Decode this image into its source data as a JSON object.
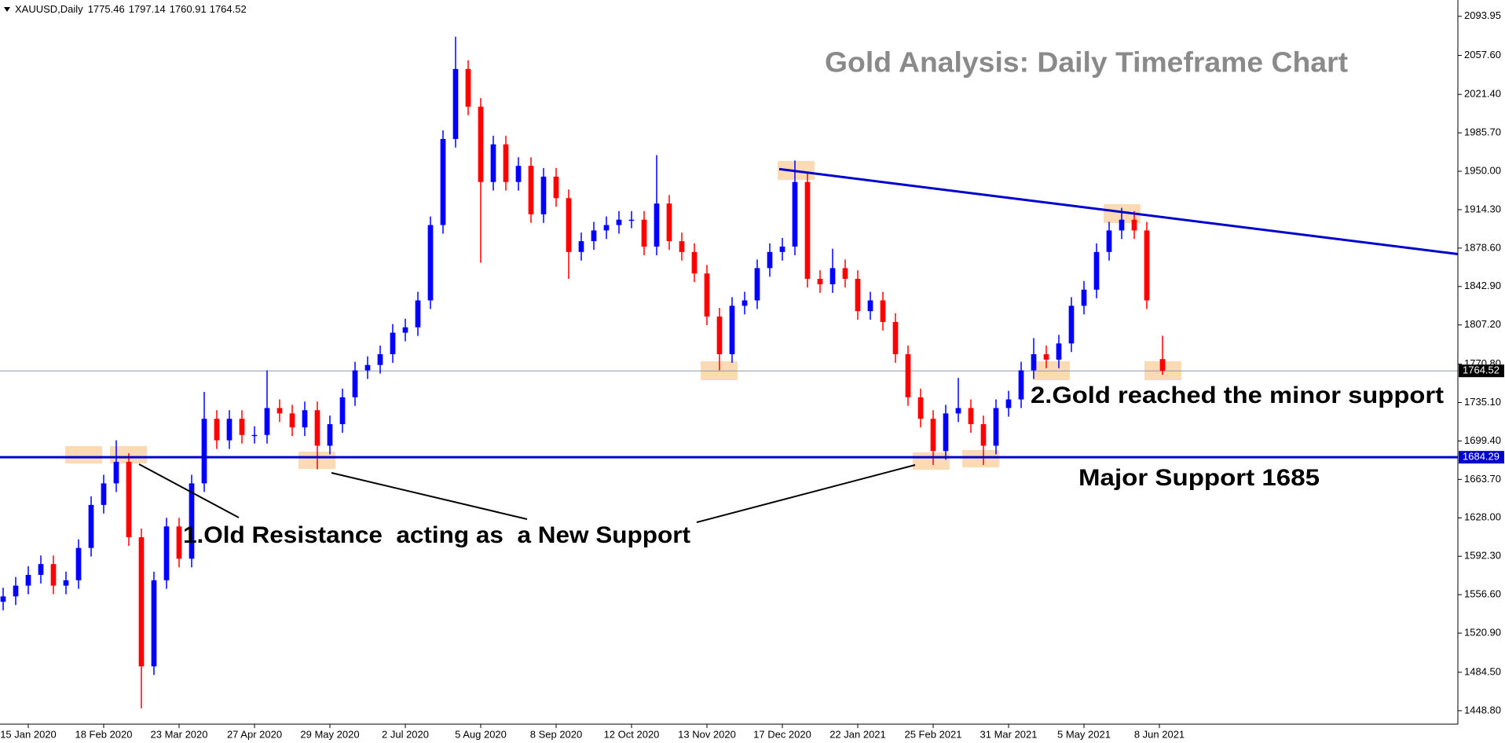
{
  "chart_data": {
    "type": "candlestick",
    "symbol": "XAUUSD,Daily",
    "title": "Gold Analysis: Daily Timeframe Chart",
    "up_color": "#0000ff",
    "down_color": "#ff0000",
    "x": [
      0,
      4,
      8,
      12,
      16,
      20,
      24,
      28,
      32,
      36,
      40,
      44,
      48,
      52,
      56,
      60,
      64,
      68,
      72,
      76,
      80,
      84,
      88,
      92,
      96,
      100,
      104,
      108,
      112,
      116,
      120,
      124,
      128,
      132,
      136,
      140,
      144,
      148,
      152,
      156,
      160,
      164,
      168,
      172,
      176,
      180,
      184,
      188,
      192,
      196,
      200,
      204,
      208,
      212,
      216,
      220,
      224,
      228,
      232,
      236,
      240,
      244,
      248,
      252,
      256,
      260,
      264,
      268,
      272,
      276,
      280,
      284,
      288,
      292,
      296,
      300,
      304,
      308,
      312,
      316,
      320,
      324,
      328,
      332,
      336,
      340,
      344,
      348,
      352,
      356,
      360,
      364,
      369
    ],
    "open": [
      1550,
      1555,
      1565,
      1575,
      1585,
      1565,
      1570,
      1600,
      1640,
      1660,
      1680,
      1610,
      1490,
      1570,
      1620,
      1590,
      1660,
      1720,
      1700,
      1720,
      1705,
      1705,
      1730,
      1725,
      1712,
      1728,
      1695,
      1715,
      1740,
      1765,
      1770,
      1780,
      1800,
      1805,
      1830,
      1900,
      1980,
      2045,
      2010,
      1940,
      1975,
      1940,
      1955,
      1910,
      1945,
      1925,
      1875,
      1885,
      1895,
      1900,
      1905,
      1905,
      1880,
      1920,
      1885,
      1875,
      1855,
      1815,
      1780,
      1825,
      1830,
      1860,
      1875,
      1880,
      1940,
      1850,
      1845,
      1860,
      1850,
      1820,
      1830,
      1810,
      1780,
      1740,
      1720,
      1690,
      1725,
      1730,
      1715,
      1695,
      1730,
      1738,
      1765,
      1780,
      1775,
      1790,
      1825,
      1840,
      1875,
      1895,
      1905,
      1895,
      1775.46
    ],
    "high": [
      1563,
      1573,
      1583,
      1593,
      1593,
      1578,
      1608,
      1648,
      1668,
      1700,
      1688,
      1618,
      1578,
      1628,
      1628,
      1668,
      1745,
      1728,
      1728,
      1728,
      1713,
      1765,
      1738,
      1733,
      1736,
      1736,
      1723,
      1748,
      1773,
      1778,
      1788,
      1808,
      1813,
      1838,
      1908,
      1988,
      2075,
      2053,
      2018,
      1983,
      1983,
      1963,
      1963,
      1953,
      1953,
      1933,
      1893,
      1903,
      1908,
      1913,
      1913,
      1913,
      1965,
      1928,
      1893,
      1883,
      1863,
      1823,
      1833,
      1838,
      1868,
      1883,
      1888,
      1960,
      1948,
      1858,
      1878,
      1868,
      1858,
      1838,
      1838,
      1818,
      1788,
      1748,
      1728,
      1733,
      1758,
      1738,
      1723,
      1738,
      1746,
      1773,
      1795,
      1788,
      1798,
      1833,
      1848,
      1883,
      1903,
      1916,
      1913,
      1903,
      1797.14
    ],
    "low": [
      1542,
      1547,
      1557,
      1567,
      1557,
      1557,
      1562,
      1592,
      1632,
      1652,
      1602,
      1451,
      1482,
      1562,
      1582,
      1582,
      1652,
      1692,
      1692,
      1697,
      1697,
      1697,
      1717,
      1704,
      1704,
      1673,
      1687,
      1707,
      1732,
      1757,
      1762,
      1772,
      1792,
      1797,
      1822,
      1892,
      1972,
      2002,
      1865,
      1932,
      1932,
      1932,
      1902,
      1902,
      1917,
      1850,
      1867,
      1877,
      1887,
      1892,
      1897,
      1872,
      1872,
      1877,
      1867,
      1847,
      1807,
      1765,
      1772,
      1817,
      1822,
      1852,
      1867,
      1872,
      1842,
      1837,
      1837,
      1842,
      1812,
      1812,
      1802,
      1772,
      1732,
      1712,
      1677,
      1682,
      1717,
      1707,
      1677,
      1687,
      1722,
      1730,
      1757,
      1767,
      1767,
      1782,
      1817,
      1832,
      1867,
      1887,
      1887,
      1822,
      1760.91
    ],
    "close": [
      1555,
      1565,
      1575,
      1585,
      1565,
      1570,
      1600,
      1640,
      1660,
      1680,
      1610,
      1490,
      1570,
      1620,
      1590,
      1660,
      1720,
      1700,
      1720,
      1705,
      1705,
      1730,
      1725,
      1712,
      1728,
      1695,
      1715,
      1740,
      1765,
      1770,
      1780,
      1800,
      1805,
      1830,
      1900,
      1980,
      2045,
      2010,
      1940,
      1975,
      1940,
      1955,
      1910,
      1945,
      1925,
      1875,
      1885,
      1895,
      1900,
      1905,
      1905,
      1880,
      1920,
      1885,
      1875,
      1855,
      1815,
      1780,
      1825,
      1830,
      1860,
      1875,
      1880,
      1940,
      1850,
      1845,
      1860,
      1850,
      1820,
      1830,
      1810,
      1780,
      1740,
      1720,
      1690,
      1725,
      1730,
      1715,
      1695,
      1730,
      1738,
      1765,
      1780,
      1775,
      1790,
      1825,
      1840,
      1875,
      1895,
      1905,
      1895,
      1830,
      1764.52
    ],
    "xlim": [
      -1,
      463
    ],
    "xticks": [
      {
        "value": 8,
        "label": "15 Jan 2020"
      },
      {
        "value": 32,
        "label": "18 Feb 2020"
      },
      {
        "value": 56,
        "label": "23 Mar 2020"
      },
      {
        "value": 80,
        "label": "27 Apr 2020"
      },
      {
        "value": 104,
        "label": "29 May 2020"
      },
      {
        "value": 128,
        "label": "2 Jul 2020"
      },
      {
        "value": 152,
        "label": "5 Aug 2020"
      },
      {
        "value": 176,
        "label": "8 Sep 2020"
      },
      {
        "value": 200,
        "label": "12 Oct 2020"
      },
      {
        "value": 224,
        "label": "13 Nov 2020"
      },
      {
        "value": 248,
        "label": "17 Dec 2020"
      },
      {
        "value": 272,
        "label": "22 Jan 2021"
      },
      {
        "value": 296,
        "label": "25 Feb 2021"
      },
      {
        "value": 320,
        "label": "31 Mar 2021"
      },
      {
        "value": 344,
        "label": "5 May 2021"
      },
      {
        "value": 368,
        "label": "8 Jun 2021"
      }
    ],
    "ylim": [
      1436.3,
      2109.1
    ],
    "yticks": [
      2093.95,
      {
        "value": 2057.6,
        "label": "2057.60"
      },
      {
        "value": 2021.4,
        "label": "2021.40"
      },
      {
        "value": 1985.7,
        "label": "1985.70"
      },
      {
        "value": 1950,
        "label": "1950.00"
      },
      {
        "value": 1914.3,
        "label": "1914.30"
      },
      {
        "value": 1878.6,
        "label": "1878.60"
      },
      {
        "value": 1842.9,
        "label": "1842.90"
      },
      {
        "value": 1807.2,
        "label": "1807.20"
      },
      {
        "value": 1770.8,
        "label": "1770.80"
      },
      {
        "value": 1735.1,
        "label": "1735.10"
      },
      {
        "value": 1699.4,
        "label": "1699.40"
      },
      {
        "value": 1663.7,
        "label": "1663.70"
      },
      {
        "value": 1628,
        "label": "1628.00"
      },
      {
        "value": 1592.3,
        "label": "1592.30"
      },
      {
        "value": 1556.6,
        "label": "1556.60"
      },
      {
        "value": 1520.9,
        "label": "1520.90"
      },
      {
        "value": 1484.5,
        "label": "1484.50"
      },
      {
        "value": 1448.8,
        "label": "1448.80"
      }
    ],
    "grid": false,
    "support": {
      "value": 1684.29,
      "color": "#0000cd"
    },
    "trendline": {
      "x": [
        247,
        463
      ],
      "y": [
        1952,
        1873
      ],
      "color": "#0000cd"
    },
    "price_line_color": "#8c9bad",
    "annotations": [
      "1.Old Resistance  acting as  a New Support",
      "2.Gold reached the minor support",
      "Major Support 1685"
    ]
  }
}
